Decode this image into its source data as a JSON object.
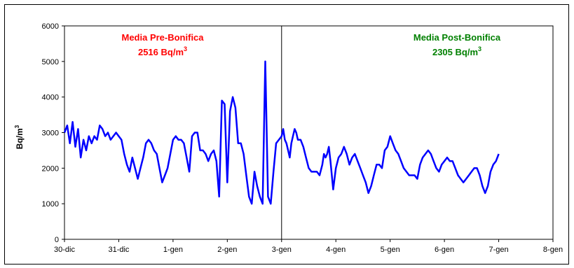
{
  "chart_data": {
    "type": "line",
    "title": "",
    "xlabel": "",
    "ylabel": "Bq/m",
    "ylabel_superscript": "3",
    "ylim": [
      0,
      6000
    ],
    "yticks": [
      "0",
      "1000",
      "2000",
      "3000",
      "4000",
      "5000",
      "6000"
    ],
    "xticks": [
      "30-dic",
      "31-dic",
      "1-gen",
      "2-gen",
      "3-gen",
      "4-gen",
      "5-gen",
      "6-gen",
      "7-gen",
      "8-gen"
    ],
    "grid": false,
    "divider_at": "3-gen",
    "annotations": {
      "pre": {
        "line1": "Media Pre-Bonifica",
        "line2_value": "2516 Bq/m",
        "line2_sup": "3",
        "color": "#ff0000"
      },
      "post": {
        "line1": "Media Post-Bonifica",
        "line2_value": "2305 Bq/m",
        "line2_sup": "3",
        "color": "#008000"
      }
    },
    "series": [
      {
        "color": "#0000ff",
        "x_days": [
          0.0,
          0.05,
          0.1,
          0.15,
          0.2,
          0.25,
          0.3,
          0.35,
          0.4,
          0.45,
          0.5,
          0.55,
          0.6,
          0.65,
          0.7,
          0.75,
          0.8,
          0.85,
          0.9,
          0.95,
          1.0,
          1.05,
          1.1,
          1.15,
          1.2,
          1.25,
          1.3,
          1.35,
          1.4,
          1.45,
          1.5,
          1.55,
          1.6,
          1.65,
          1.7,
          1.75,
          1.8,
          1.85,
          1.9,
          1.95,
          2.0,
          2.05,
          2.1,
          2.15,
          2.2,
          2.25,
          2.3,
          2.35,
          2.4,
          2.45,
          2.5,
          2.55,
          2.6,
          2.65,
          2.7,
          2.75,
          2.8,
          2.85,
          2.9,
          2.95,
          3.0,
          3.05,
          3.1,
          3.15,
          3.2,
          3.25,
          3.3,
          3.35,
          3.4,
          3.45,
          3.5,
          3.55,
          3.6,
          3.65,
          3.7,
          3.75,
          3.8,
          3.85,
          3.9,
          3.95,
          4.0,
          4.03,
          4.06,
          4.09,
          4.12,
          4.15,
          4.18,
          4.21,
          4.24,
          4.27,
          4.3,
          4.35,
          4.4,
          4.45,
          4.5,
          4.55,
          4.6,
          4.65,
          4.7,
          4.75,
          4.78,
          4.81,
          4.84,
          4.87,
          4.9,
          4.95,
          5.0,
          5.05,
          5.1,
          5.15,
          5.2,
          5.25,
          5.3,
          5.35,
          5.4,
          5.45,
          5.5,
          5.55,
          5.6,
          5.65,
          5.7,
          5.75,
          5.8,
          5.85,
          5.9,
          5.95,
          6.0,
          6.05,
          6.1,
          6.15,
          6.2,
          6.25,
          6.3,
          6.35,
          6.4,
          6.45,
          6.5,
          6.55,
          6.6,
          6.65,
          6.7,
          6.75,
          6.8,
          6.85,
          6.9,
          6.95,
          7.0,
          7.05,
          7.1,
          7.15,
          7.2,
          7.25,
          7.3,
          7.35,
          7.4,
          7.45,
          7.5,
          7.55,
          7.6,
          7.65,
          7.7,
          7.75,
          7.8,
          7.85,
          7.9,
          7.95,
          8.0
        ],
        "values": [
          3000,
          3200,
          2700,
          3300,
          2600,
          3100,
          2300,
          2800,
          2500,
          2900,
          2700,
          2900,
          2800,
          3200,
          3100,
          2900,
          3000,
          2800,
          2900,
          3000,
          2900,
          2800,
          2400,
          2100,
          1900,
          2300,
          2000,
          1700,
          2000,
          2300,
          2700,
          2800,
          2700,
          2500,
          2400,
          2000,
          1600,
          1800,
          2000,
          2400,
          2800,
          2900,
          2800,
          2800,
          2700,
          2300,
          1900,
          2900,
          3000,
          3000,
          2500,
          2500,
          2400,
          2200,
          2400,
          2500,
          2200,
          1200,
          3900,
          3800,
          1600,
          3600,
          4000,
          3700,
          2700,
          2700,
          2400,
          1800,
          1200,
          1000,
          1900,
          1500,
          1200,
          1000,
          5000,
          1200,
          1000,
          1900,
          2700,
          2800,
          2900,
          3100,
          2800,
          2700,
          2500,
          2300,
          2700,
          2900,
          3100,
          3000,
          2800,
          2800,
          2600,
          2300,
          2000,
          1900,
          1900,
          1900,
          1800,
          2100,
          2400,
          2300,
          2400,
          2600,
          2200,
          1400,
          2000,
          2300,
          2400,
          2600,
          2400,
          2100,
          2300,
          2400,
          2200,
          2000,
          1800,
          1600,
          1300,
          1500,
          1800,
          2100,
          2100,
          2000,
          2500,
          2600,
          2900,
          2700,
          2500,
          2400,
          2200,
          2000,
          1900,
          1800,
          1800,
          1800,
          1700,
          2100,
          2300,
          2400,
          2500,
          2400,
          2200,
          2000,
          1900,
          2100,
          2200,
          2300,
          2200,
          2200,
          2000,
          1800,
          1700,
          1600,
          1700,
          1800,
          1900,
          2000,
          2000,
          1800,
          1500,
          1300,
          1500,
          1900,
          2100,
          2200,
          2400
        ]
      }
    ]
  }
}
